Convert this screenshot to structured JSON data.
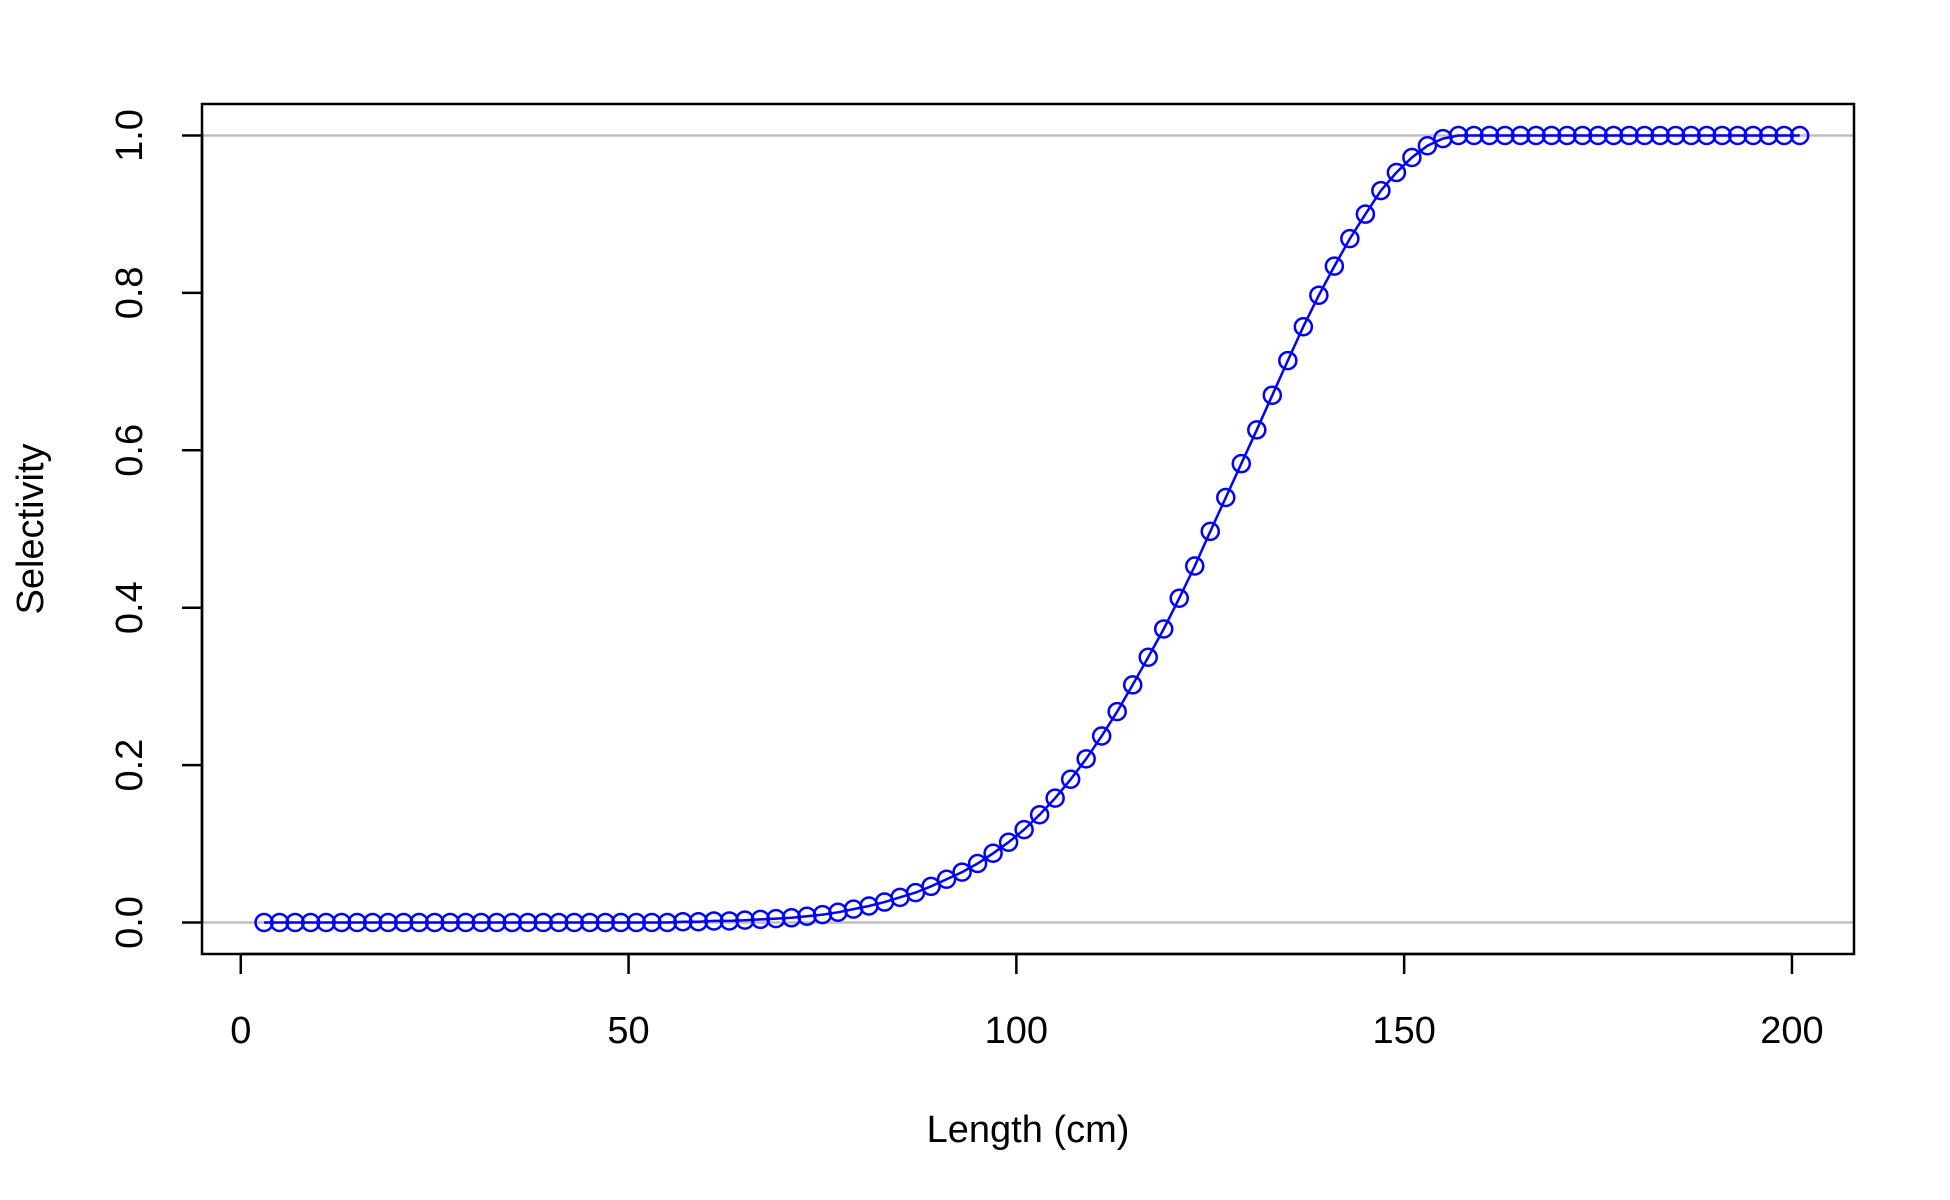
{
  "chart_data": {
    "type": "line",
    "title": "",
    "xlabel": "Length (cm)",
    "ylabel": "Selectivity",
    "xlim": [
      -5,
      208
    ],
    "ylim": [
      -0.04,
      1.04
    ],
    "x_ticks": [
      "0",
      "50",
      "100",
      "150",
      "200"
    ],
    "y_ticks": [
      "0.0",
      "0.2",
      "0.4",
      "0.6",
      "0.8",
      "1.0"
    ],
    "reference_lines_y": [
      0,
      1
    ],
    "grid": false,
    "legend": "none",
    "colors": {
      "series": "#0000ff",
      "reference": "#bebebe",
      "axis": "#000000"
    },
    "series": [
      {
        "marker": "open-circle",
        "x": [
          3,
          5,
          7,
          9,
          11,
          13,
          15,
          17,
          19,
          21,
          23,
          25,
          27,
          29,
          31,
          33,
          35,
          37,
          39,
          41,
          43,
          45,
          47,
          49,
          51,
          53,
          55,
          57,
          59,
          61,
          63,
          65,
          67,
          69,
          71,
          73,
          75,
          77,
          79,
          81,
          83,
          85,
          87,
          89,
          91,
          93,
          95,
          97,
          99,
          101,
          103,
          105,
          107,
          109,
          111,
          113,
          115,
          117,
          119,
          121,
          123,
          125,
          127,
          129,
          131,
          133,
          135,
          137,
          139,
          141,
          143,
          145,
          147,
          149,
          151,
          153,
          155,
          157,
          159,
          161,
          163,
          165,
          167,
          169,
          171,
          173,
          175,
          177,
          179,
          181,
          183,
          185,
          187,
          189,
          191,
          193,
          195,
          197,
          199,
          201
        ],
        "y": [
          0,
          0,
          0,
          0,
          0,
          0,
          0,
          0,
          0,
          0,
          0,
          0,
          0,
          0,
          0,
          0,
          0,
          0,
          0,
          0,
          0,
          0,
          0,
          0,
          0,
          0,
          0,
          0.001,
          0.001,
          0.002,
          0.002,
          0.003,
          0.004,
          0.005,
          0.006,
          0.008,
          0.01,
          0.013,
          0.017,
          0.021,
          0.026,
          0.032,
          0.038,
          0.046,
          0.055,
          0.064,
          0.075,
          0.088,
          0.102,
          0.118,
          0.137,
          0.158,
          0.182,
          0.208,
          0.237,
          0.268,
          0.302,
          0.337,
          0.373,
          0.412,
          0.453,
          0.497,
          0.54,
          0.583,
          0.626,
          0.67,
          0.714,
          0.757,
          0.797,
          0.834,
          0.869,
          0.9,
          0.93,
          0.953,
          0.972,
          0.987,
          0.996,
          1,
          1,
          1,
          1,
          1,
          1,
          1,
          1,
          1,
          1,
          1,
          1,
          1,
          1,
          1,
          1,
          1,
          1,
          1,
          1,
          1,
          1,
          1
        ]
      }
    ]
  }
}
